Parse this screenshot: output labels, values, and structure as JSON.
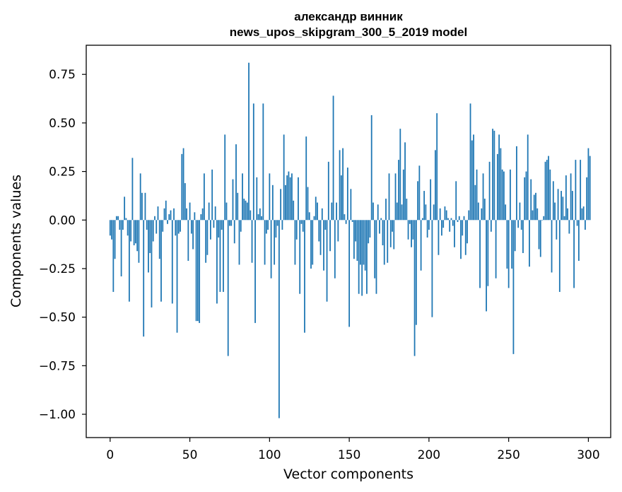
{
  "chart_data": {
    "type": "bar",
    "title_lines": [
      "александр винник",
      "news_upos_skipgram_300_5_2019 model"
    ],
    "xlabel": "Vector components",
    "ylabel": "Components values",
    "xlim": [
      -15,
      314
    ],
    "ylim": [
      -1.12,
      0.9
    ],
    "xticks": [
      0,
      50,
      100,
      150,
      200,
      250,
      300
    ],
    "xtick_labels": [
      "0",
      "50",
      "100",
      "150",
      "200",
      "250",
      "300"
    ],
    "yticks": [
      -1.0,
      -0.75,
      -0.5,
      -0.25,
      0.0,
      0.25,
      0.5,
      0.75
    ],
    "ytick_labels": [
      "−1.00",
      "−0.75",
      "−0.50",
      "−0.25",
      "0.00",
      "0.25",
      "0.50",
      "0.75"
    ],
    "grid": false,
    "bar_color": "#1f77b4",
    "x": "component index 0-299",
    "values": [
      -0.08,
      -0.1,
      -0.37,
      -0.2,
      0.02,
      0.02,
      -0.05,
      -0.29,
      -0.05,
      0.12,
      0.01,
      -0.08,
      -0.42,
      -0.11,
      0.32,
      -0.13,
      -0.12,
      -0.16,
      -0.22,
      0.24,
      0.14,
      -0.6,
      0.14,
      -0.05,
      -0.27,
      -0.17,
      -0.45,
      -0.11,
      0.02,
      -0.07,
      0.07,
      -0.2,
      -0.42,
      -0.06,
      0.06,
      0.1,
      -0.02,
      0.03,
      0.05,
      -0.43,
      0.06,
      -0.08,
      -0.58,
      -0.07,
      -0.06,
      0.34,
      0.37,
      0.19,
      0.06,
      -0.21,
      0.09,
      -0.07,
      -0.15,
      0.04,
      -0.52,
      -0.52,
      -0.53,
      0.03,
      0.06,
      0.24,
      -0.22,
      -0.18,
      0.09,
      -0.1,
      0.26,
      -0.04,
      0.07,
      -0.43,
      -0.09,
      -0.37,
      -0.05,
      -0.37,
      0.44,
      0.09,
      -0.7,
      -0.03,
      -0.03,
      0.21,
      -0.12,
      0.39,
      0.14,
      -0.23,
      -0.06,
      0.24,
      0.11,
      0.1,
      0.09,
      0.81,
      0.05,
      -0.22,
      0.6,
      -0.53,
      0.22,
      0.03,
      0.06,
      0.02,
      0.6,
      -0.23,
      -0.07,
      -0.05,
      0.24,
      -0.3,
      0.18,
      -0.23,
      -0.09,
      -0.03,
      -1.02,
      0.16,
      -0.05,
      0.44,
      0.18,
      0.23,
      0.25,
      0.22,
      0.24,
      0.1,
      -0.23,
      -0.1,
      0.22,
      -0.38,
      -0.02,
      -0.06,
      -0.58,
      0.43,
      0.17,
      0.04,
      -0.25,
      -0.23,
      0.02,
      0.12,
      0.09,
      -0.11,
      -0.18,
      0.06,
      -0.26,
      -0.05,
      -0.42,
      0.3,
      -0.16,
      0.09,
      0.64,
      -0.3,
      0.09,
      -0.11,
      0.36,
      0.23,
      0.37,
      0.03,
      -0.02,
      0.27,
      -0.55,
      0.16,
      -0.01,
      -0.2,
      -0.11,
      -0.21,
      -0.38,
      -0.23,
      -0.39,
      -0.23,
      -0.26,
      -0.38,
      -0.12,
      -0.09,
      0.54,
      0.09,
      -0.3,
      -0.38,
      0.08,
      -0.07,
      0.01,
      -0.13,
      -0.23,
      0.11,
      -0.22,
      0.24,
      -0.14,
      -0.06,
      -0.15,
      0.24,
      0.09,
      0.31,
      0.47,
      0.08,
      0.26,
      0.4,
      0.11,
      -0.1,
      -0.02,
      -0.14,
      -0.1,
      -0.7,
      -0.54,
      0.2,
      0.28,
      -0.26,
      0.01,
      0.15,
      0.08,
      -0.09,
      -0.05,
      0.21,
      -0.5,
      0.08,
      0.36,
      0.55,
      -0.18,
      0.06,
      -0.08,
      -0.04,
      0.07,
      0.05,
      0.01,
      -0.06,
      0.01,
      -0.03,
      -0.14,
      0.2,
      -0.01,
      0.02,
      -0.2,
      -0.08,
      0.02,
      -0.18,
      -0.12,
      0.05,
      0.6,
      0.41,
      0.44,
      0.18,
      0.26,
      0.09,
      -0.35,
      0.06,
      0.24,
      0.11,
      -0.47,
      -0.34,
      0.3,
      -0.06,
      0.47,
      0.46,
      -0.3,
      0.34,
      0.44,
      0.37,
      0.26,
      0.25,
      0.08,
      -0.25,
      -0.35,
      0.26,
      -0.25,
      -0.69,
      -0.16,
      0.38,
      -0.04,
      0.09,
      -0.05,
      -0.17,
      0.22,
      0.25,
      0.44,
      -0.24,
      0.21,
      0.05,
      0.13,
      0.14,
      0.06,
      -0.15,
      -0.19,
      0.0,
      0.02,
      0.3,
      0.31,
      0.33,
      0.26,
      -0.27,
      0.2,
      0.09,
      -0.1,
      0.16,
      -0.37,
      0.15,
      0.12,
      0.02,
      0.23,
      0.06,
      -0.07,
      0.24,
      0.15,
      -0.35,
      0.31,
      -0.03,
      -0.21,
      0.31,
      0.06,
      0.07,
      -0.05,
      0.22,
      0.37,
      0.33
    ]
  }
}
